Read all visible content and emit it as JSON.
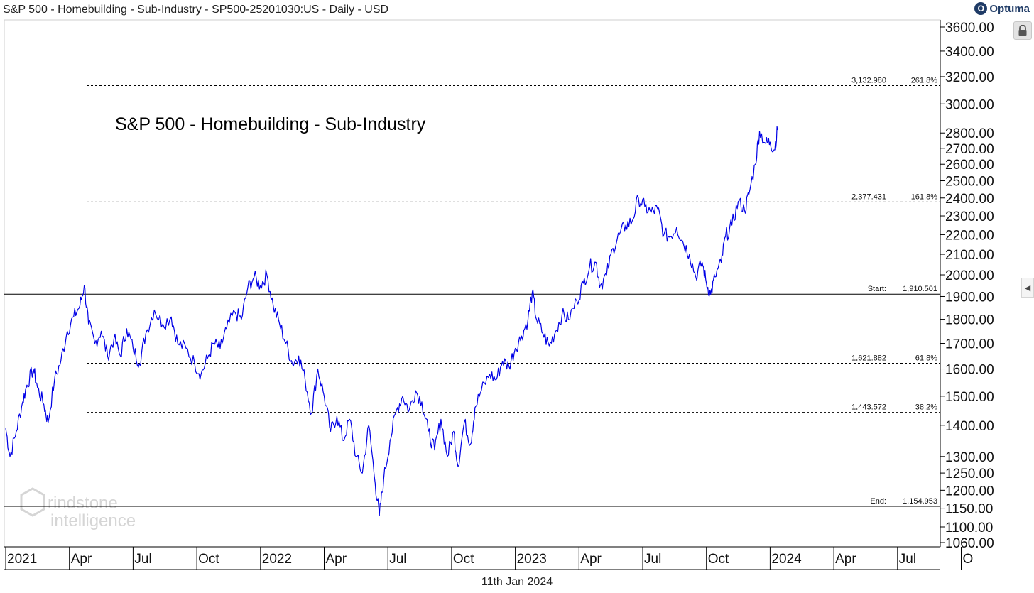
{
  "header": {
    "title": "S&P 500 - Homebuilding - Sub-Industry - SP500-25201030:US - Daily - USD",
    "logo_text": "Optuma",
    "logo_glyph": "O"
  },
  "footer": {
    "date": "11th Jan 2024"
  },
  "watermark": {
    "line1": "rindstone",
    "line2": "intelligence"
  },
  "colors": {
    "series": "#0000e6",
    "background": "#ffffff",
    "axis": "#000000"
  },
  "chart_data": {
    "type": "line",
    "title": "S&P 500 - Homebuilding - Sub-Industry",
    "scale": "log",
    "ylim": [
      1060,
      3600
    ],
    "y_ticks": [
      "3600.00",
      "3400.00",
      "3200.00",
      "3000.00",
      "2800.00",
      "2700.00",
      "2600.00",
      "2500.00",
      "2400.00",
      "2300.00",
      "2200.00",
      "2100.00",
      "2000.00",
      "1900.00",
      "1800.00",
      "1700.00",
      "1600.00",
      "1500.00",
      "1400.00",
      "1300.00",
      "1250.00",
      "1200.00",
      "1150.00",
      "1100.00",
      "1060.00"
    ],
    "x_ticks": [
      {
        "label": "2021",
        "t": 0
      },
      {
        "label": "Apr",
        "t": 3
      },
      {
        "label": "Jul",
        "t": 6
      },
      {
        "label": "Oct",
        "t": 9
      },
      {
        "label": "2022",
        "t": 12
      },
      {
        "label": "Apr",
        "t": 15
      },
      {
        "label": "Jul",
        "t": 18
      },
      {
        "label": "Oct",
        "t": 21
      },
      {
        "label": "2023",
        "t": 24
      },
      {
        "label": "Apr",
        "t": 27
      },
      {
        "label": "Jul",
        "t": 30
      },
      {
        "label": "Oct",
        "t": 33
      },
      {
        "label": "2024",
        "t": 36
      },
      {
        "label": "Apr",
        "t": 39
      },
      {
        "label": "Jul",
        "t": 42
      },
      {
        "label": "O",
        "t": 45
      }
    ],
    "x_unit": "months since Jan 2021",
    "fib_levels": [
      {
        "value": 3132.98,
        "label": "3,132.980",
        "pct": "261.8%",
        "style": "dashed",
        "name": "fib-261"
      },
      {
        "value": 2377.431,
        "label": "2,377.431",
        "pct": "161.8%",
        "style": "dashed",
        "name": "fib-161"
      },
      {
        "value": 1910.501,
        "label": "Start:",
        "pct": "1,910.501",
        "style": "solid",
        "name": "fib-start"
      },
      {
        "value": 1621.882,
        "label": "1,621.882",
        "pct": "61.8%",
        "style": "dashed",
        "name": "fib-61"
      },
      {
        "value": 1443.572,
        "label": "1,443.572",
        "pct": "38.2%",
        "style": "dashed",
        "name": "fib-38"
      },
      {
        "value": 1154.953,
        "label": "End:",
        "pct": "1,154.953",
        "style": "solid",
        "name": "fib-end"
      }
    ],
    "series": [
      {
        "name": "Homebuilding",
        "points": [
          [
            0.0,
            1390
          ],
          [
            0.2,
            1300
          ],
          [
            0.5,
            1380
          ],
          [
            0.8,
            1480
          ],
          [
            1.0,
            1540
          ],
          [
            1.3,
            1600
          ],
          [
            1.5,
            1530
          ],
          [
            1.8,
            1470
          ],
          [
            2.0,
            1410
          ],
          [
            2.3,
            1560
          ],
          [
            2.6,
            1630
          ],
          [
            2.9,
            1750
          ],
          [
            3.2,
            1810
          ],
          [
            3.5,
            1860
          ],
          [
            3.7,
            1950
          ],
          [
            3.9,
            1780
          ],
          [
            4.2,
            1700
          ],
          [
            4.5,
            1750
          ],
          [
            4.8,
            1650
          ],
          [
            5.1,
            1720
          ],
          [
            5.4,
            1650
          ],
          [
            5.7,
            1760
          ],
          [
            6.0,
            1680
          ],
          [
            6.3,
            1620
          ],
          [
            6.6,
            1740
          ],
          [
            7.0,
            1840
          ],
          [
            7.4,
            1780
          ],
          [
            7.8,
            1810
          ],
          [
            8.1,
            1700
          ],
          [
            8.5,
            1680
          ],
          [
            8.9,
            1620
          ],
          [
            9.2,
            1580
          ],
          [
            9.5,
            1640
          ],
          [
            9.8,
            1700
          ],
          [
            10.1,
            1680
          ],
          [
            10.4,
            1760
          ],
          [
            10.8,
            1830
          ],
          [
            11.1,
            1800
          ],
          [
            11.4,
            1940
          ],
          [
            11.7,
            1990
          ],
          [
            12.0,
            1950
          ],
          [
            12.3,
            2000
          ],
          [
            12.6,
            1860
          ],
          [
            12.9,
            1780
          ],
          [
            13.2,
            1700
          ],
          [
            13.5,
            1620
          ],
          [
            13.8,
            1650
          ],
          [
            14.1,
            1560
          ],
          [
            14.4,
            1440
          ],
          [
            14.7,
            1600
          ],
          [
            15.0,
            1500
          ],
          [
            15.3,
            1380
          ],
          [
            15.6,
            1430
          ],
          [
            15.9,
            1350
          ],
          [
            16.2,
            1420
          ],
          [
            16.5,
            1300
          ],
          [
            16.8,
            1250
          ],
          [
            17.1,
            1400
          ],
          [
            17.4,
            1220
          ],
          [
            17.6,
            1130
          ],
          [
            17.8,
            1230
          ],
          [
            18.1,
            1350
          ],
          [
            18.4,
            1450
          ],
          [
            18.7,
            1500
          ],
          [
            19.0,
            1450
          ],
          [
            19.3,
            1520
          ],
          [
            19.6,
            1480
          ],
          [
            19.9,
            1380
          ],
          [
            20.2,
            1320
          ],
          [
            20.5,
            1420
          ],
          [
            20.8,
            1300
          ],
          [
            21.1,
            1380
          ],
          [
            21.3,
            1270
          ],
          [
            21.6,
            1410
          ],
          [
            21.9,
            1340
          ],
          [
            22.1,
            1460
          ],
          [
            22.4,
            1520
          ],
          [
            22.8,
            1580
          ],
          [
            23.1,
            1560
          ],
          [
            23.4,
            1630
          ],
          [
            23.7,
            1610
          ],
          [
            24.0,
            1680
          ],
          [
            24.3,
            1730
          ],
          [
            24.6,
            1800
          ],
          [
            24.8,
            1920
          ],
          [
            25.0,
            1800
          ],
          [
            25.3,
            1740
          ],
          [
            25.6,
            1690
          ],
          [
            25.9,
            1750
          ],
          [
            26.2,
            1820
          ],
          [
            26.5,
            1800
          ],
          [
            26.9,
            1880
          ],
          [
            27.2,
            1960
          ],
          [
            27.5,
            2040
          ],
          [
            27.8,
            2060
          ],
          [
            28.0,
            1950
          ],
          [
            28.3,
            2000
          ],
          [
            28.6,
            2130
          ],
          [
            28.9,
            2200
          ],
          [
            29.2,
            2250
          ],
          [
            29.5,
            2270
          ],
          [
            29.8,
            2400
          ],
          [
            30.1,
            2350
          ],
          [
            30.4,
            2320
          ],
          [
            30.7,
            2340
          ],
          [
            31.0,
            2200
          ],
          [
            31.3,
            2190
          ],
          [
            31.6,
            2240
          ],
          [
            31.9,
            2160
          ],
          [
            32.2,
            2100
          ],
          [
            32.5,
            1990
          ],
          [
            32.8,
            2060
          ],
          [
            33.0,
            1960
          ],
          [
            33.2,
            1910
          ],
          [
            33.4,
            1990
          ],
          [
            33.7,
            2060
          ],
          [
            33.9,
            2190
          ],
          [
            34.2,
            2250
          ],
          [
            34.5,
            2380
          ],
          [
            34.8,
            2330
          ],
          [
            35.0,
            2420
          ],
          [
            35.3,
            2600
          ],
          [
            35.5,
            2810
          ],
          [
            35.8,
            2730
          ],
          [
            36.0,
            2740
          ],
          [
            36.2,
            2690
          ],
          [
            36.35,
            2820
          ]
        ]
      }
    ]
  }
}
